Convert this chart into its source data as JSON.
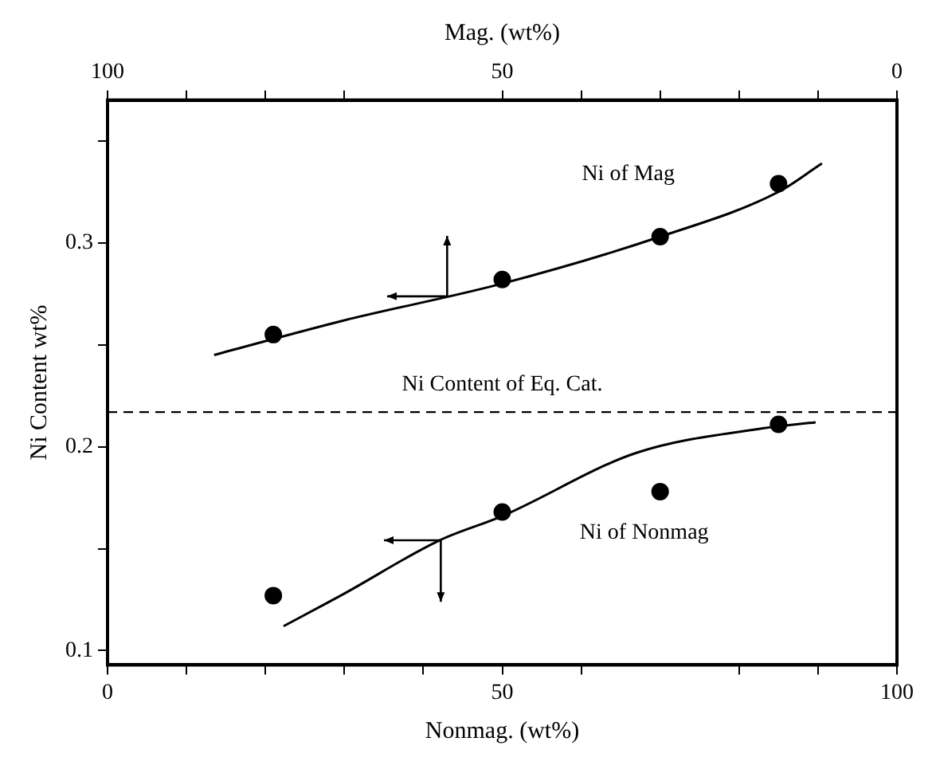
{
  "chart_data": {
    "type": "scatter",
    "xlabel": "Nonmag. (wt%)",
    "x2label": "Mag. (wt%)",
    "ylabel": "Ni Content wt%",
    "xlim": [
      0,
      100
    ],
    "xticks": [
      0,
      {
        "value": 10,
        "label": null
      },
      {
        "value": 20,
        "label": null
      },
      {
        "value": 30,
        "label": null
      },
      {
        "value": 40,
        "label": null
      },
      50,
      {
        "value": 60,
        "label": null
      },
      {
        "value": 80,
        "label": null
      },
      {
        "value": 90,
        "label": null
      },
      100
    ],
    "x2lim": [
      100,
      0
    ],
    "x2ticks": [
      100,
      {
        "value": 90,
        "label": null
      },
      {
        "value": 80,
        "label": null
      },
      {
        "value": 70,
        "label": null
      },
      50,
      {
        "value": 40,
        "label": null
      },
      {
        "value": 30,
        "label": null
      },
      {
        "value": 20,
        "label": null
      },
      {
        "value": 10,
        "label": null
      },
      0
    ],
    "ylim": [
      0.093,
      0.37
    ],
    "yticks": [
      0.1,
      {
        "value": 0.15,
        "label": null
      },
      0.2,
      {
        "value": 0.25,
        "label": null
      },
      0.3,
      {
        "value": 0.35,
        "label": null
      }
    ],
    "series": [
      {
        "name": "Ni of Mag",
        "marker": "circle",
        "color": "#000000",
        "x": [
          21,
          50,
          70,
          85
        ],
        "values": [
          0.255,
          0.282,
          0.303,
          0.329
        ]
      },
      {
        "type": "line",
        "marker": "none",
        "color": "#000000",
        "x": [
          13.5,
          30,
          50,
          70,
          85,
          90.5
        ],
        "values": [
          0.245,
          0.262,
          0.28,
          0.303,
          0.325,
          0.339
        ]
      },
      {
        "name": "Ni of Nonmag",
        "marker": "circle",
        "color": "#000000",
        "x": [
          21,
          50,
          70,
          85
        ],
        "values": [
          0.127,
          0.168,
          0.178,
          0.211
        ]
      },
      {
        "type": "line",
        "marker": "none",
        "color": "#000000",
        "x": [
          22.3,
          30,
          42,
          50,
          67,
          83,
          89.7
        ],
        "values": [
          0.112,
          0.128,
          0.154,
          0.166,
          0.197,
          0.209,
          0.212
        ]
      }
    ],
    "ref_lines": [
      {
        "axis": "y",
        "value": 0.217,
        "label": "Ni Content of Eq. Cat.",
        "color": "#000000",
        "line_style": "dashed"
      }
    ]
  }
}
